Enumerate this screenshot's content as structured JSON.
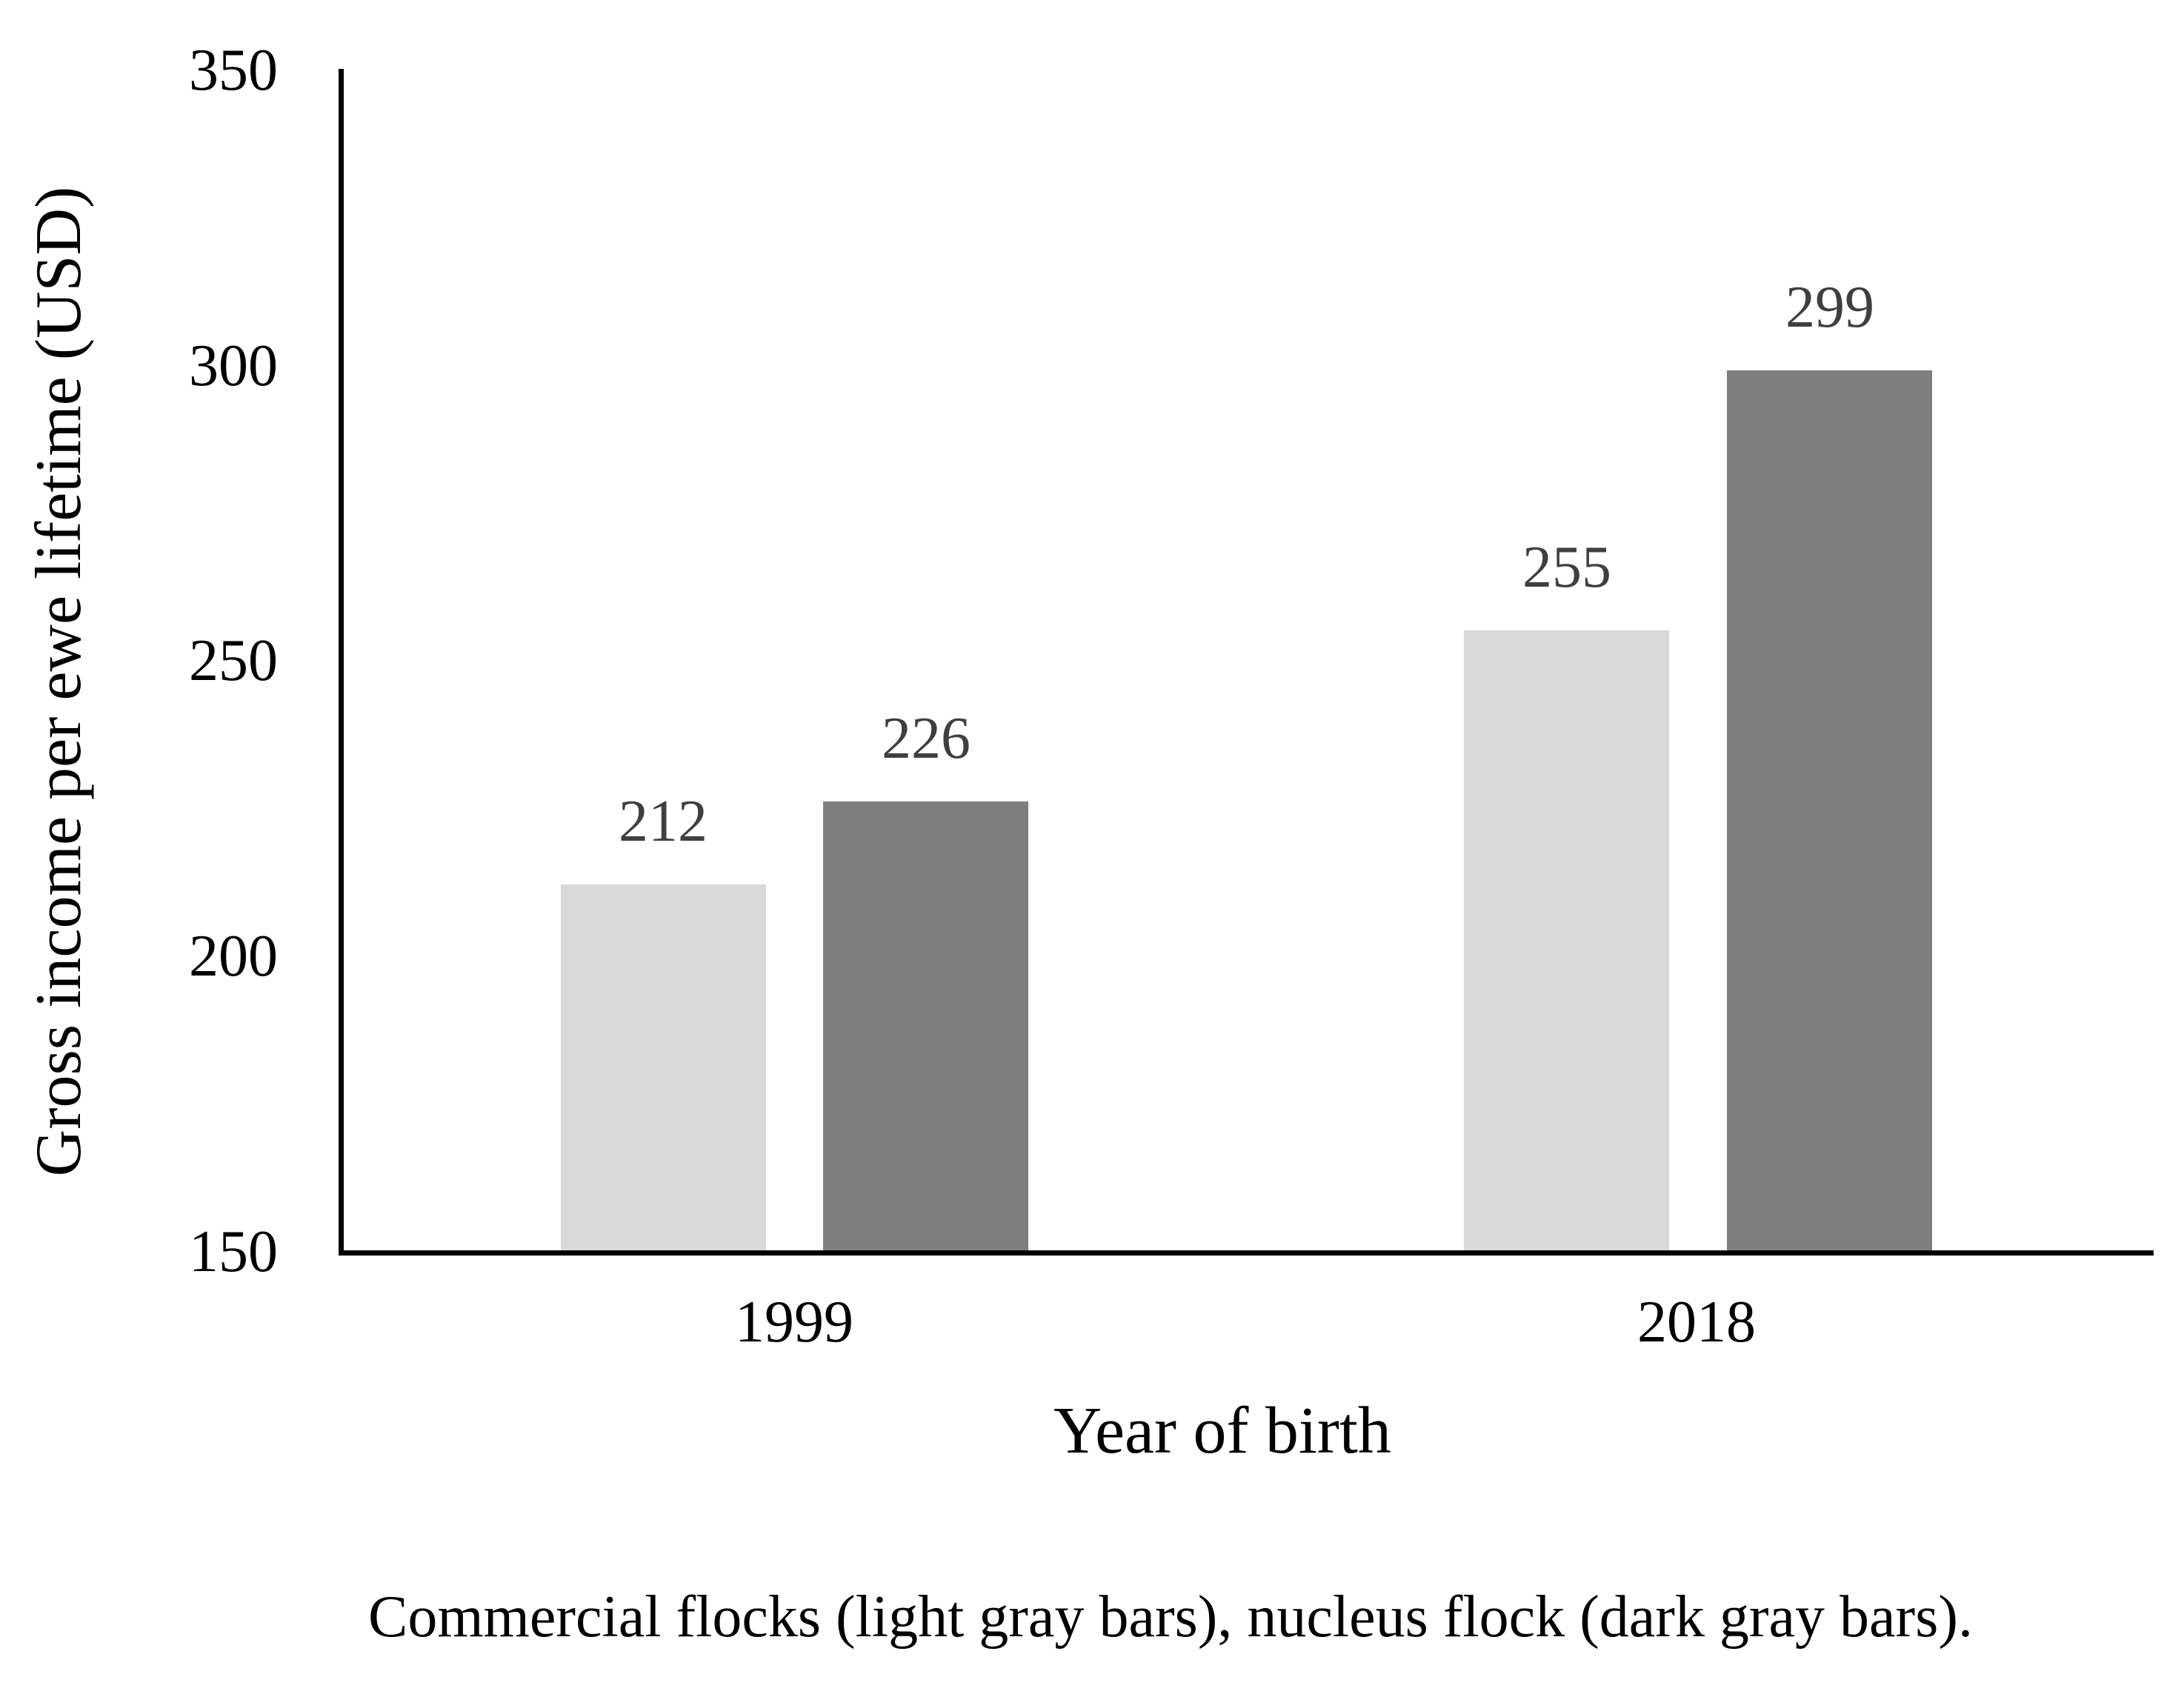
{
  "chart_data": {
    "type": "bar",
    "categories": [
      "1999",
      "2018"
    ],
    "series": [
      {
        "name": "Commercial flocks",
        "color": "#d9d9d9",
        "values": [
          212,
          255
        ]
      },
      {
        "name": "Nucleus flock",
        "color": "#7f7f7f",
        "values": [
          226,
          299
        ]
      }
    ],
    "title": "",
    "xlabel": "Year of birth",
    "ylabel": "Gross income per ewe lifetime (USD)",
    "ylim": [
      150,
      350
    ],
    "y_ticks": [
      350,
      300,
      250,
      200,
      150
    ],
    "grid": false,
    "legend_position": "none",
    "data_labels": "values shown above each bar"
  },
  "figure": {
    "caption": "Commercial flocks (light gray bars), nucleus flock (dark gray bars)."
  }
}
